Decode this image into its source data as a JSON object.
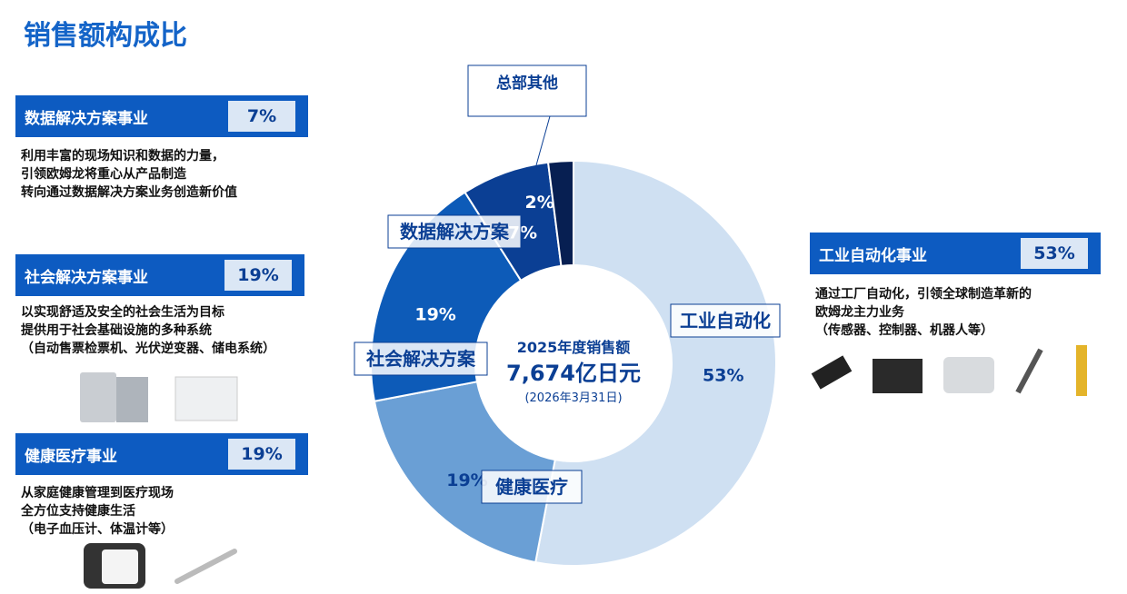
{
  "title": "销售额构成比",
  "chart_data": {
    "type": "donut",
    "categories": [
      "工业自动化",
      "健康医疗",
      "社会解决方案",
      "数据解决方案",
      "总部其他"
    ],
    "values": [
      53,
      19,
      19,
      7,
      2
    ],
    "value_labels": [
      "53%",
      "19%",
      "19%",
      "7%",
      "2%"
    ],
    "colors": [
      "#cfe0f2",
      "#6a9fd5",
      "#0d5bb8",
      "#0b3f94",
      "#071f52"
    ],
    "center_title": "2025年度销售额",
    "center_value": "7,674亿日元",
    "center_date": "(2026年3月31日)"
  },
  "panels": [
    {
      "title": "数据解决方案事业",
      "lines": [
        "利用丰富的现场知识和数据的力量，",
        "引领欧姆龙将重心从产品制造",
        "转向通过数据解决方案业务创造新价值"
      ]
    },
    {
      "title": "社会解决方案事业",
      "lines": [
        "以实现舒适及安全的社会生活为目标",
        "提供用于社会基础设施的多种系统",
        "（自动售票检票机、光伏逆变器、储电系统）"
      ]
    },
    {
      "title": "健康医疗事业",
      "lines": [
        "从家庭健康管理到医疗现场",
        "全方位支持健康生活",
        "（电子血压计、体温计等）"
      ]
    },
    {
      "title": "工业自动化事业",
      "lines": [
        "通过工厂自动化，引领全球制造革新的",
        "欧姆龙主力业务",
        "（传感器、控制器、机器人等）"
      ]
    }
  ]
}
